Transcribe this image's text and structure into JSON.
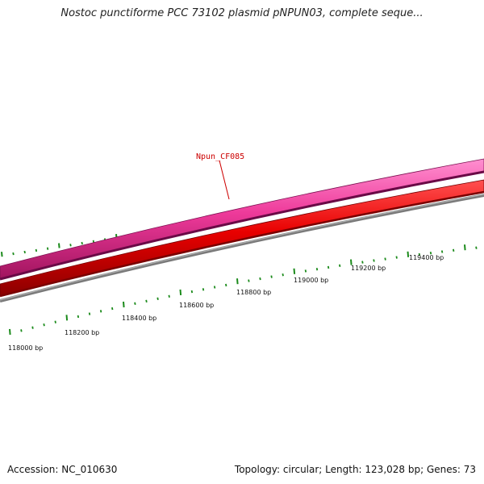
{
  "header": {
    "title": "Nostoc punctiforme PCC 73102 plasmid pNPUN03, complete seque..."
  },
  "footer": {
    "accession": "Accession: NC_010630",
    "summary": "Topology: circular; Length: 123,028 bp; Genes: 73"
  },
  "genes": [
    {
      "name": "Npun_CF085",
      "color": "#cc0000"
    }
  ],
  "ruler": {
    "tick_color": "#1a8a1a",
    "labels": [
      "118000 bp",
      "118200 bp",
      "118400 bp",
      "118600 bp",
      "118800 bp",
      "119000 bp",
      "119200 bp",
      "119400 bp"
    ]
  },
  "tracks": [
    {
      "name": "forward-strand-genes",
      "color": "#e8358f"
    },
    {
      "name": "reverse-strand-genes",
      "color": "#e00000"
    },
    {
      "name": "backbone",
      "color": "#808080"
    }
  ]
}
